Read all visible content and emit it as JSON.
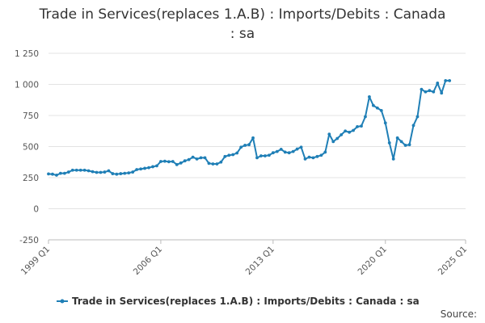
{
  "chart_data": {
    "type": "line",
    "title_line1": "Trade in Services(replaces 1.A.B) : Imports/Debits : Canada",
    "title_line2": ": sa",
    "xlabel": "",
    "ylabel": "",
    "ylim": [
      -250,
      1250
    ],
    "y_ticks": [
      -250,
      0,
      250,
      500,
      750,
      1000,
      1250
    ],
    "y_tick_labels": [
      "-250",
      "0",
      "250",
      "500",
      "750",
      "1 000",
      "1 250"
    ],
    "x_ticks": [
      "1999 Q1",
      "2006 Q1",
      "2013 Q1",
      "2020 Q1",
      "2025 Q1"
    ],
    "x_start": "1999 Q1",
    "x_end": "2025 Q1",
    "grid": true,
    "legend_position": "bottom",
    "color": "#1f7fb6",
    "series": [
      {
        "name": "Trade in Services(replaces 1.A.B) : Imports/Debits : Canada : sa",
        "x": [
          "1999 Q1",
          "1999 Q2",
          "1999 Q3",
          "1999 Q4",
          "2000 Q1",
          "2000 Q2",
          "2000 Q3",
          "2000 Q4",
          "2001 Q1",
          "2001 Q2",
          "2001 Q3",
          "2001 Q4",
          "2002 Q1",
          "2002 Q2",
          "2002 Q3",
          "2002 Q4",
          "2003 Q1",
          "2003 Q2",
          "2003 Q3",
          "2003 Q4",
          "2004 Q1",
          "2004 Q2",
          "2004 Q3",
          "2004 Q4",
          "2005 Q1",
          "2005 Q2",
          "2005 Q3",
          "2005 Q4",
          "2006 Q1",
          "2006 Q2",
          "2006 Q3",
          "2006 Q4",
          "2007 Q1",
          "2007 Q2",
          "2007 Q3",
          "2007 Q4",
          "2008 Q1",
          "2008 Q2",
          "2008 Q3",
          "2008 Q4",
          "2009 Q1",
          "2009 Q2",
          "2009 Q3",
          "2009 Q4",
          "2010 Q1",
          "2010 Q2",
          "2010 Q3",
          "2010 Q4",
          "2011 Q1",
          "2011 Q2",
          "2011 Q3",
          "2011 Q4",
          "2012 Q1",
          "2012 Q2",
          "2012 Q3",
          "2012 Q4",
          "2013 Q1",
          "2013 Q2",
          "2013 Q3",
          "2013 Q4",
          "2014 Q1",
          "2014 Q2",
          "2014 Q3",
          "2014 Q4",
          "2015 Q1",
          "2015 Q2",
          "2015 Q3",
          "2015 Q4",
          "2016 Q1",
          "2016 Q2",
          "2016 Q3",
          "2016 Q4",
          "2017 Q1",
          "2017 Q2",
          "2017 Q3",
          "2017 Q4",
          "2018 Q1",
          "2018 Q2",
          "2018 Q3",
          "2018 Q4",
          "2019 Q1",
          "2019 Q2",
          "2019 Q3",
          "2019 Q4",
          "2020 Q1",
          "2020 Q2",
          "2020 Q3",
          "2020 Q4",
          "2021 Q1",
          "2021 Q2",
          "2021 Q3",
          "2021 Q4",
          "2022 Q1",
          "2022 Q2",
          "2022 Q3",
          "2022 Q4",
          "2023 Q1",
          "2023 Q2",
          "2023 Q3",
          "2023 Q4",
          "2024 Q1"
        ],
        "values": [
          280,
          278,
          270,
          285,
          285,
          295,
          310,
          310,
          310,
          310,
          305,
          298,
          292,
          292,
          295,
          305,
          282,
          278,
          282,
          285,
          288,
          295,
          315,
          320,
          325,
          330,
          338,
          345,
          380,
          382,
          378,
          380,
          355,
          368,
          385,
          395,
          415,
          400,
          410,
          410,
          365,
          360,
          360,
          375,
          420,
          430,
          435,
          448,
          495,
          510,
          515,
          570,
          410,
          425,
          425,
          430,
          450,
          460,
          478,
          455,
          450,
          460,
          480,
          495,
          400,
          415,
          410,
          420,
          430,
          455,
          600,
          540,
          565,
          595,
          625,
          615,
          630,
          660,
          665,
          740,
          900,
          830,
          810,
          790,
          690,
          530,
          400,
          570,
          540,
          510,
          515,
          670,
          740,
          960,
          940,
          950,
          940,
          1010,
          930,
          1030,
          1030
        ]
      }
    ]
  },
  "legend": {
    "label": "Trade in Services(replaces 1.A.B) : Imports/Debits : Canada : sa"
  },
  "source": {
    "label": "Source:"
  }
}
